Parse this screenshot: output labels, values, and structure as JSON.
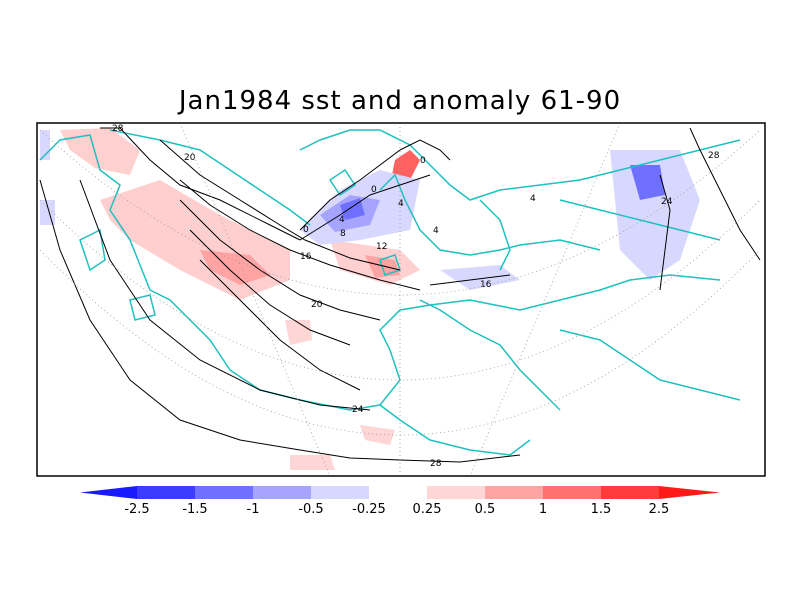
{
  "title": "Jan1984 sst and anomaly 61-90",
  "colorbar": {
    "colors": [
      "#1a1aff",
      "#3c3cff",
      "#7070ff",
      "#a5a5ff",
      "#d8d8ff",
      "#ffffff",
      "#ffd6d6",
      "#ffa3a3",
      "#ff7070",
      "#ff3c3c",
      "#ff1a1a"
    ],
    "tick_labels": [
      "-2.5",
      "-1.5",
      "-1",
      "-0.5",
      "-0.25",
      "0.25",
      "0.5",
      "1",
      "1.5",
      "2.5"
    ]
  },
  "contour_labels": [
    "28",
    "20",
    "0",
    "4",
    "8",
    "12",
    "16",
    "16",
    "20",
    "24",
    "28",
    "24",
    "28",
    "0",
    "4",
    "4",
    "0",
    "4"
  ],
  "colors": {
    "coastline": "#20c0c0",
    "positive_anomaly": "#ff8080",
    "negative_anomaly": "#7070ff",
    "contour": "#000000"
  }
}
